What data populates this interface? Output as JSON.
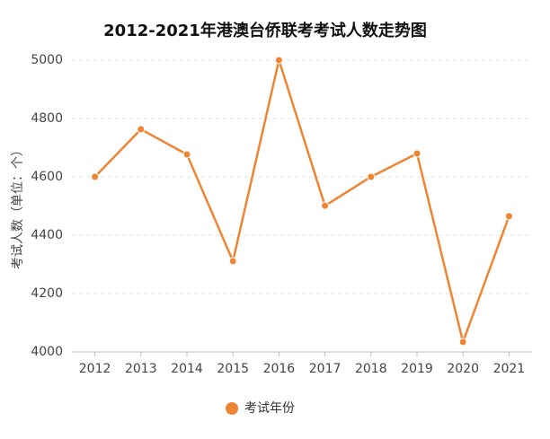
{
  "chart_data": {
    "type": "line",
    "title": "2012-2021年港澳台侨联考考试人数走势图",
    "y_label": "考试人数（单位：个）",
    "categories": [
      "2012",
      "2013",
      "2014",
      "2015",
      "2016",
      "2017",
      "2018",
      "2019",
      "2020",
      "2021"
    ],
    "series": [
      {
        "name": "考试年份",
        "color": "#ee8533",
        "values": [
          4600,
          4763,
          4677,
          4311,
          5000,
          4501,
          4600,
          4680,
          4034,
          4465
        ]
      }
    ],
    "ylim": [
      4000,
      5000
    ],
    "yticks": [
      4000,
      4200,
      4400,
      4600,
      4800,
      5000
    ],
    "grid": true,
    "legend": "bottom"
  }
}
